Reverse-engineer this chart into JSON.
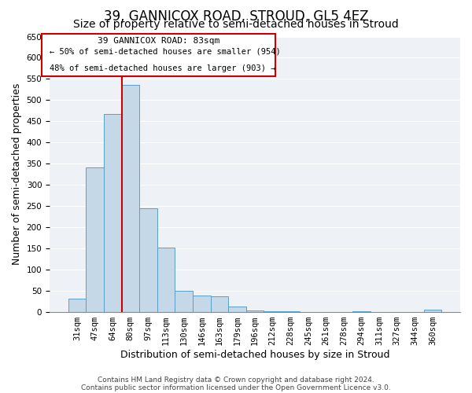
{
  "title": "39, GANNICOX ROAD, STROUD, GL5 4EZ",
  "subtitle": "Size of property relative to semi-detached houses in Stroud",
  "xlabel": "Distribution of semi-detached houses by size in Stroud",
  "ylabel": "Number of semi-detached properties",
  "bin_labels": [
    "31sqm",
    "47sqm",
    "64sqm",
    "80sqm",
    "97sqm",
    "113sqm",
    "130sqm",
    "146sqm",
    "163sqm",
    "179sqm",
    "196sqm",
    "212sqm",
    "228sqm",
    "245sqm",
    "261sqm",
    "278sqm",
    "294sqm",
    "311sqm",
    "327sqm",
    "344sqm",
    "360sqm"
  ],
  "bin_values": [
    30,
    340,
    467,
    535,
    245,
    152,
    50,
    39,
    37,
    12,
    3,
    2,
    1,
    0,
    0,
    0,
    1,
    0,
    0,
    0,
    4
  ],
  "bar_color": "#c5d8e8",
  "bar_edge_color": "#5a9ec8",
  "property_line_bin": 3,
  "property_sqm": 83,
  "property_label": "39 GANNICOX ROAD: 83sqm",
  "pct_smaller": 50,
  "count_smaller": 954,
  "pct_larger": 48,
  "count_larger": 903,
  "line_color": "#cc0000",
  "box_edge_color": "#cc0000",
  "ylim": [
    0,
    650
  ],
  "yticks": [
    0,
    50,
    100,
    150,
    200,
    250,
    300,
    350,
    400,
    450,
    500,
    550,
    600,
    650
  ],
  "footnote1": "Contains HM Land Registry data © Crown copyright and database right 2024.",
  "footnote2": "Contains public sector information licensed under the Open Government Licence v3.0.",
  "title_fontsize": 12,
  "subtitle_fontsize": 10,
  "label_fontsize": 9,
  "tick_fontsize": 7.5,
  "footnote_fontsize": 6.5,
  "bg_color": "#eef2f7"
}
